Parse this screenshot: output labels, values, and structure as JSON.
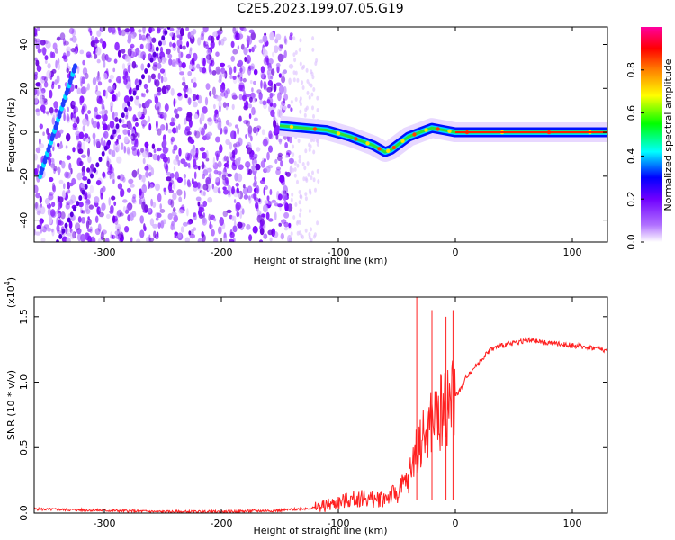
{
  "title": "C2E5.2023.199.07.05.G19",
  "chart_data": [
    {
      "type": "heatmap",
      "xlabel": "Height of straight line (km)",
      "ylabel": "Frequency (Hz)",
      "xlim": [
        -360,
        130
      ],
      "ylim": [
        -50,
        48
      ],
      "x_ticks": [
        -300,
        -200,
        -100,
        0,
        100
      ],
      "y_ticks": [
        40,
        20,
        0,
        -20,
        -40
      ],
      "colorbar": {
        "label": "Normalized spectral amplitude",
        "range": [
          0,
          1
        ],
        "ticks": [
          "0.0",
          "0.2",
          "0.4",
          "0.6",
          "0.8"
        ],
        "colors": [
          "#ffffff",
          "#b070ff",
          "#7000ff",
          "#0000ff",
          "#00ffff",
          "#00ff00",
          "#ffff00",
          "#ff8000",
          "#ff0000",
          "#ff00a0"
        ]
      },
      "ridge": {
        "x": [
          -150,
          -130,
          -110,
          -90,
          -80,
          -70,
          -60,
          -55,
          -50,
          -40,
          -30,
          -20,
          -10,
          0,
          20,
          60,
          100,
          130
        ],
        "y": [
          3,
          2,
          1,
          -2,
          -4,
          -6,
          -9,
          -8,
          -6,
          -2,
          0,
          2,
          1,
          0,
          0,
          0,
          0,
          0
        ]
      },
      "diagonal_track": {
        "x": [
          -355,
          -325
        ],
        "y": [
          -20,
          30
        ]
      }
    },
    {
      "type": "line",
      "xlabel": "Height of straight line (km)",
      "ylabel": "SNR (10 * v/v)",
      "multiplier": "(x10",
      "multiplier_exp": "4",
      "multiplier_close": ")",
      "xlim": [
        -360,
        130
      ],
      "ylim": [
        0,
        1.65
      ],
      "x_ticks": [
        -300,
        -200,
        -100,
        0,
        100
      ],
      "y_ticks": [
        "0.0",
        "0.5",
        "1.0",
        "1.5"
      ],
      "series": [
        {
          "color": "#ff2020",
          "x": [
            -360,
            -300,
            -250,
            -200,
            -150,
            -120,
            -100,
            -90,
            -80,
            -70,
            -60,
            -50,
            -45,
            -40,
            -35,
            -30,
            -25,
            -20,
            -15,
            -10,
            -5,
            0,
            5,
            10,
            15,
            20,
            25,
            30,
            40,
            50,
            60,
            70,
            80,
            90,
            100,
            110,
            120,
            130
          ],
          "y": [
            0.03,
            0.02,
            0.01,
            0.01,
            0.02,
            0.04,
            0.08,
            0.1,
            0.12,
            0.1,
            0.12,
            0.15,
            0.2,
            0.25,
            0.45,
            0.55,
            0.6,
            0.7,
            0.75,
            0.8,
            0.85,
            0.9,
            0.95,
            1.05,
            1.1,
            1.15,
            1.2,
            1.25,
            1.28,
            1.3,
            1.32,
            1.31,
            1.3,
            1.29,
            1.28,
            1.27,
            1.26,
            1.24
          ]
        }
      ],
      "spikes": [
        {
          "x": -33,
          "y": 1.65
        },
        {
          "x": -20,
          "y": 1.55
        },
        {
          "x": -8,
          "y": 1.5
        },
        {
          "x": -2,
          "y": 1.55
        }
      ]
    }
  ]
}
